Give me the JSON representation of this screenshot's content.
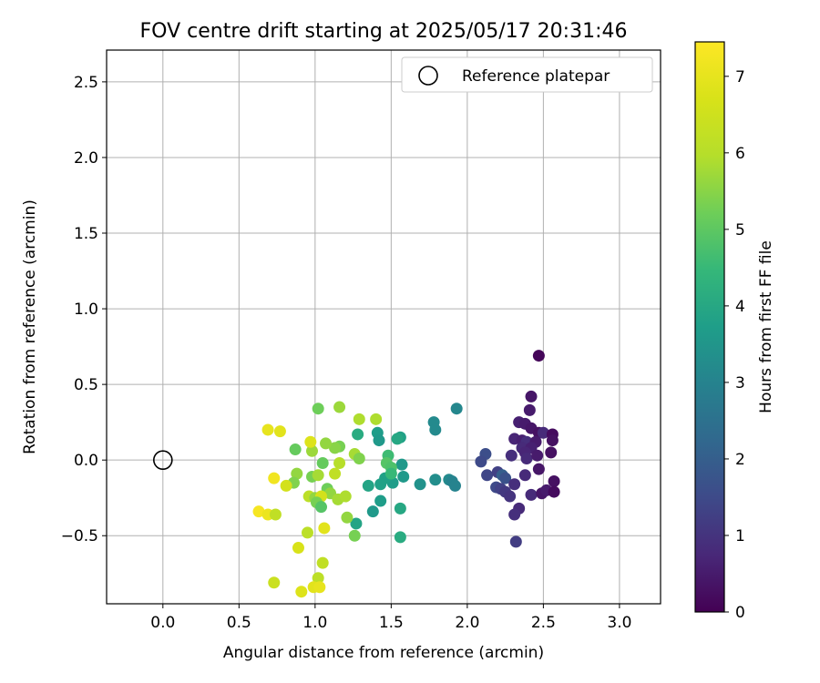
{
  "chart_data": {
    "type": "scatter",
    "title": "FOV centre drift starting at 2025/05/17 20:31:46",
    "xlabel": "Angular distance from reference (arcmin)",
    "ylabel": "Rotation from reference (arcmin)",
    "xlim": [
      -0.37,
      3.27
    ],
    "ylim": [
      -0.95,
      2.71
    ],
    "xticks": [
      0.0,
      0.5,
      1.0,
      1.5,
      2.0,
      2.5,
      3.0
    ],
    "xtick_labels": [
      "0.0",
      "0.5",
      "1.0",
      "1.5",
      "2.0",
      "2.5",
      "3.0"
    ],
    "yticks": [
      -0.5,
      0.0,
      0.5,
      1.0,
      1.5,
      2.0,
      2.5
    ],
    "ytick_labels": [
      "−0.5",
      "0.0",
      "0.5",
      "1.0",
      "1.5",
      "2.0",
      "2.5"
    ],
    "grid": true,
    "legend_position": "top-right",
    "legend": [
      {
        "label": "Reference platepar",
        "marker": "open-circle"
      }
    ],
    "reference_point": {
      "x": 0.0,
      "y": 0.0
    },
    "colormap": "viridis",
    "colorbar": {
      "label": "Hours from first FF file",
      "min": 0,
      "max": 7.45,
      "ticks": [
        0,
        1,
        2,
        3,
        4,
        5,
        6,
        7
      ],
      "tick_labels": [
        "0",
        "1",
        "2",
        "3",
        "4",
        "5",
        "6",
        "7"
      ]
    },
    "points": [
      {
        "x": 2.47,
        "y": 0.69,
        "c": 0.1
      },
      {
        "x": 2.42,
        "y": 0.42,
        "c": 0.4
      },
      {
        "x": 2.41,
        "y": 0.33,
        "c": 0.5
      },
      {
        "x": 2.34,
        "y": 0.25,
        "c": 0.6
      },
      {
        "x": 2.38,
        "y": 0.24,
        "c": 0.5
      },
      {
        "x": 2.42,
        "y": 0.21,
        "c": 0.4
      },
      {
        "x": 2.47,
        "y": 0.18,
        "c": 0.3
      },
      {
        "x": 2.5,
        "y": 0.18,
        "c": 0.8
      },
      {
        "x": 2.56,
        "y": 0.17,
        "c": 0.2
      },
      {
        "x": 2.56,
        "y": 0.13,
        "c": 0.3
      },
      {
        "x": 2.31,
        "y": 0.14,
        "c": 0.7
      },
      {
        "x": 2.36,
        "y": 0.13,
        "c": 0.6
      },
      {
        "x": 2.39,
        "y": 0.12,
        "c": 0.9
      },
      {
        "x": 2.45,
        "y": 0.12,
        "c": 0.5
      },
      {
        "x": 2.36,
        "y": 0.08,
        "c": 0.8
      },
      {
        "x": 2.42,
        "y": 0.08,
        "c": 0.6
      },
      {
        "x": 2.38,
        "y": 0.05,
        "c": 0.7
      },
      {
        "x": 2.55,
        "y": 0.05,
        "c": 0.3
      },
      {
        "x": 2.29,
        "y": 0.03,
        "c": 0.9
      },
      {
        "x": 2.39,
        "y": 0.01,
        "c": 0.8
      },
      {
        "x": 2.46,
        "y": 0.03,
        "c": 0.5
      },
      {
        "x": 2.12,
        "y": 0.04,
        "c": 1.6
      },
      {
        "x": 2.09,
        "y": -0.01,
        "c": 1.5
      },
      {
        "x": 2.47,
        "y": -0.06,
        "c": 0.4
      },
      {
        "x": 2.13,
        "y": -0.1,
        "c": 1.4
      },
      {
        "x": 2.2,
        "y": -0.08,
        "c": 1.3
      },
      {
        "x": 2.23,
        "y": -0.1,
        "c": 2.0
      },
      {
        "x": 2.25,
        "y": -0.12,
        "c": 1.7
      },
      {
        "x": 2.38,
        "y": -0.1,
        "c": 0.8
      },
      {
        "x": 2.31,
        "y": -0.16,
        "c": 0.9
      },
      {
        "x": 2.19,
        "y": -0.18,
        "c": 1.5
      },
      {
        "x": 2.22,
        "y": -0.19,
        "c": 1.3
      },
      {
        "x": 2.25,
        "y": -0.21,
        "c": 1.1
      },
      {
        "x": 2.28,
        "y": -0.24,
        "c": 1.0
      },
      {
        "x": 2.42,
        "y": -0.23,
        "c": 0.8
      },
      {
        "x": 2.49,
        "y": -0.22,
        "c": 0.4
      },
      {
        "x": 2.52,
        "y": -0.2,
        "c": 0.5
      },
      {
        "x": 2.57,
        "y": -0.14,
        "c": 0.3
      },
      {
        "x": 2.57,
        "y": -0.21,
        "c": 0.2
      },
      {
        "x": 2.34,
        "y": -0.32,
        "c": 0.8
      },
      {
        "x": 2.31,
        "y": -0.36,
        "c": 0.9
      },
      {
        "x": 2.32,
        "y": -0.54,
        "c": 1.2
      },
      {
        "x": 1.93,
        "y": 0.34,
        "c": 3.1
      },
      {
        "x": 1.78,
        "y": 0.25,
        "c": 3.2
      },
      {
        "x": 1.79,
        "y": 0.2,
        "c": 3.2
      },
      {
        "x": 1.79,
        "y": -0.13,
        "c": 3.3
      },
      {
        "x": 1.88,
        "y": -0.13,
        "c": 3.2
      },
      {
        "x": 1.9,
        "y": -0.14,
        "c": 3.0
      },
      {
        "x": 1.92,
        "y": -0.17,
        "c": 3.0
      },
      {
        "x": 1.69,
        "y": -0.16,
        "c": 3.4
      },
      {
        "x": 1.56,
        "y": 0.15,
        "c": 3.8
      },
      {
        "x": 1.54,
        "y": 0.14,
        "c": 4.0
      },
      {
        "x": 1.57,
        "y": -0.03,
        "c": 3.6
      },
      {
        "x": 1.58,
        "y": -0.11,
        "c": 3.6
      },
      {
        "x": 1.51,
        "y": -0.15,
        "c": 3.7
      },
      {
        "x": 1.46,
        "y": -0.12,
        "c": 3.8
      },
      {
        "x": 1.43,
        "y": -0.16,
        "c": 3.8
      },
      {
        "x": 1.35,
        "y": -0.17,
        "c": 3.9
      },
      {
        "x": 1.41,
        "y": 0.18,
        "c": 3.7
      },
      {
        "x": 1.42,
        "y": 0.13,
        "c": 3.6
      },
      {
        "x": 1.56,
        "y": -0.32,
        "c": 4.0
      },
      {
        "x": 1.43,
        "y": -0.27,
        "c": 3.7
      },
      {
        "x": 1.38,
        "y": -0.34,
        "c": 3.6
      },
      {
        "x": 1.56,
        "y": -0.51,
        "c": 4.1
      },
      {
        "x": 1.27,
        "y": -0.42,
        "c": 3.9
      },
      {
        "x": 1.28,
        "y": 0.17,
        "c": 4.1
      },
      {
        "x": 1.48,
        "y": 0.03,
        "c": 4.6
      },
      {
        "x": 1.47,
        "y": -0.02,
        "c": 4.9
      },
      {
        "x": 1.5,
        "y": -0.05,
        "c": 4.8
      },
      {
        "x": 1.5,
        "y": -0.09,
        "c": 4.5
      },
      {
        "x": 1.4,
        "y": 0.27,
        "c": 5.9
      },
      {
        "x": 1.29,
        "y": 0.27,
        "c": 5.9
      },
      {
        "x": 1.16,
        "y": 0.35,
        "c": 5.7
      },
      {
        "x": 1.02,
        "y": 0.34,
        "c": 5.2
      },
      {
        "x": 1.16,
        "y": 0.09,
        "c": 5.3
      },
      {
        "x": 1.13,
        "y": 0.08,
        "c": 5.5
      },
      {
        "x": 1.07,
        "y": 0.11,
        "c": 5.6
      },
      {
        "x": 1.26,
        "y": 0.04,
        "c": 5.8
      },
      {
        "x": 1.29,
        "y": 0.01,
        "c": 5.4
      },
      {
        "x": 1.16,
        "y": -0.02,
        "c": 6.0
      },
      {
        "x": 1.05,
        "y": -0.02,
        "c": 5.1
      },
      {
        "x": 1.13,
        "y": -0.09,
        "c": 6.2
      },
      {
        "x": 0.98,
        "y": 0.06,
        "c": 5.7
      },
      {
        "x": 0.87,
        "y": 0.07,
        "c": 5.1
      },
      {
        "x": 0.88,
        "y": -0.09,
        "c": 5.6
      },
      {
        "x": 0.98,
        "y": -0.11,
        "c": 5.3
      },
      {
        "x": 1.02,
        "y": -0.1,
        "c": 5.8
      },
      {
        "x": 0.86,
        "y": -0.15,
        "c": 5.4
      },
      {
        "x": 1.08,
        "y": -0.19,
        "c": 5.2
      },
      {
        "x": 1.1,
        "y": -0.22,
        "c": 5.6
      },
      {
        "x": 1.15,
        "y": -0.26,
        "c": 5.8
      },
      {
        "x": 1.2,
        "y": -0.24,
        "c": 5.9
      },
      {
        "x": 0.96,
        "y": -0.24,
        "c": 6.1
      },
      {
        "x": 1.0,
        "y": -0.25,
        "c": 5.6
      },
      {
        "x": 1.04,
        "y": -0.24,
        "c": 6.6
      },
      {
        "x": 1.01,
        "y": -0.28,
        "c": 5.3
      },
      {
        "x": 1.04,
        "y": -0.31,
        "c": 4.9
      },
      {
        "x": 1.21,
        "y": -0.38,
        "c": 5.6
      },
      {
        "x": 1.26,
        "y": -0.5,
        "c": 5.3
      },
      {
        "x": 0.97,
        "y": 0.12,
        "c": 6.8
      },
      {
        "x": 0.95,
        "y": -0.48,
        "c": 6.1
      },
      {
        "x": 1.05,
        "y": -0.68,
        "c": 6.2
      },
      {
        "x": 1.02,
        "y": -0.78,
        "c": 6.1
      },
      {
        "x": 0.69,
        "y": 0.2,
        "c": 7.0
      },
      {
        "x": 0.77,
        "y": 0.19,
        "c": 6.9
      },
      {
        "x": 0.73,
        "y": -0.12,
        "c": 7.2
      },
      {
        "x": 0.81,
        "y": -0.17,
        "c": 6.6
      },
      {
        "x": 0.63,
        "y": -0.34,
        "c": 7.3
      },
      {
        "x": 0.69,
        "y": -0.36,
        "c": 7.1
      },
      {
        "x": 0.74,
        "y": -0.36,
        "c": 6.2
      },
      {
        "x": 1.06,
        "y": -0.45,
        "c": 6.9
      },
      {
        "x": 0.89,
        "y": -0.58,
        "c": 6.7
      },
      {
        "x": 0.73,
        "y": -0.81,
        "c": 6.4
      },
      {
        "x": 0.91,
        "y": -0.87,
        "c": 6.8
      },
      {
        "x": 0.99,
        "y": -0.84,
        "c": 6.9
      },
      {
        "x": 1.03,
        "y": -0.84,
        "c": 7.0
      }
    ]
  }
}
